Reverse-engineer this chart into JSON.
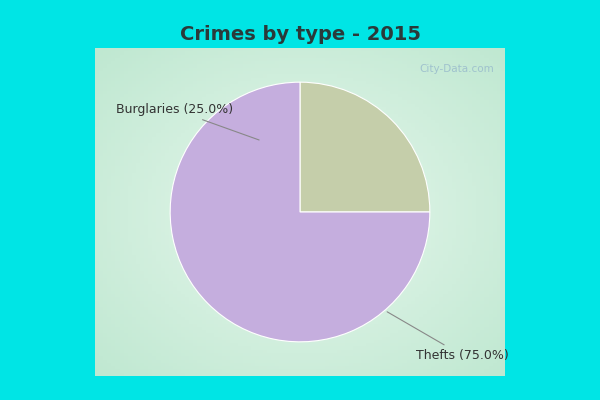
{
  "title": "Crimes by type - 2015",
  "slices": [
    {
      "label": "Burglaries (25.0%)",
      "value": 25.0,
      "color": "#c5ceaa"
    },
    {
      "label": "Thefts (75.0%)",
      "value": 75.0,
      "color": "#c5aede"
    }
  ],
  "bg_cyan": "#00e5e5",
  "bg_main": "#d8f0e0",
  "title_fontsize": 14,
  "label_fontsize": 9,
  "startangle": 90,
  "watermark_text": "City-Data.com",
  "title_color": "#2a3a3a",
  "label_color": "#333333",
  "arrow_color": "#888888"
}
